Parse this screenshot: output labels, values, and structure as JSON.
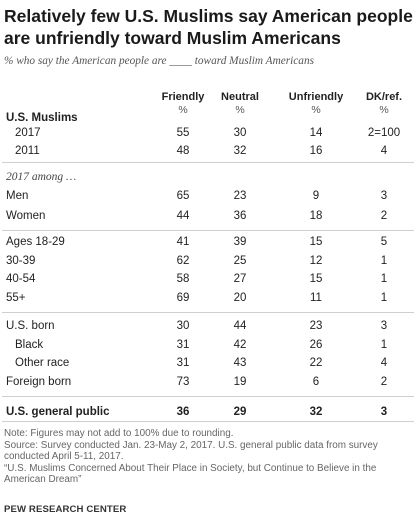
{
  "title": "Relatively few U.S. Muslims say American people are unfriendly toward Muslim Americans",
  "subtitle": "% who say the American people are ____ toward Muslim Americans",
  "notes": [
    "Note: Figures may not add to 100% due to rounding.",
    "Source: Survey conducted Jan. 23-May 2, 2017. U.S. general public data from survey",
    "conducted April 5-11, 2017.",
    "“U.S. Muslims Concerned About Their Place in Society, but Continue to Believe in the",
    "American Dream”"
  ],
  "source_label": "PEW RESEARCH CENTER",
  "chart_data": {
    "type": "table",
    "columns": [
      "Friendly",
      "Neutral",
      "Unfriendly",
      "DK/ref."
    ],
    "unit_row": [
      "%",
      "%",
      "%",
      "%"
    ],
    "rows": [
      {
        "label": "U.S. Muslims",
        "style": "section",
        "values": []
      },
      {
        "label": "2017",
        "style": "indent",
        "values": [
          "55",
          "30",
          "14",
          "2=100"
        ]
      },
      {
        "label": "2011",
        "style": "indent",
        "values": [
          "48",
          "32",
          "16",
          "4"
        ]
      },
      {
        "label": "2017 among …",
        "style": "italic",
        "values": []
      },
      {
        "label": "Men",
        "style": "plain",
        "values": [
          "65",
          "23",
          "9",
          "3"
        ]
      },
      {
        "label": "Women",
        "style": "plain",
        "values": [
          "44",
          "36",
          "18",
          "2"
        ]
      },
      {
        "label": "Ages 18-29",
        "style": "plain",
        "values": [
          "41",
          "39",
          "15",
          "5"
        ]
      },
      {
        "label": "30-39",
        "style": "plain",
        "values": [
          "62",
          "25",
          "12",
          "1"
        ]
      },
      {
        "label": "40-54",
        "style": "plain",
        "values": [
          "58",
          "27",
          "15",
          "1"
        ]
      },
      {
        "label": "55+",
        "style": "plain",
        "values": [
          "69",
          "20",
          "11",
          "1"
        ]
      },
      {
        "label": "U.S. born",
        "style": "plain",
        "values": [
          "30",
          "44",
          "23",
          "3"
        ]
      },
      {
        "label": "Black",
        "style": "indent",
        "values": [
          "31",
          "42",
          "26",
          "1"
        ]
      },
      {
        "label": "Other race",
        "style": "indent",
        "values": [
          "31",
          "43",
          "22",
          "4"
        ]
      },
      {
        "label": "Foreign born",
        "style": "plain",
        "values": [
          "73",
          "19",
          "6",
          "2"
        ]
      },
      {
        "label": "U.S. general public",
        "style": "bold",
        "values": [
          "36",
          "29",
          "32",
          "3"
        ]
      }
    ]
  }
}
